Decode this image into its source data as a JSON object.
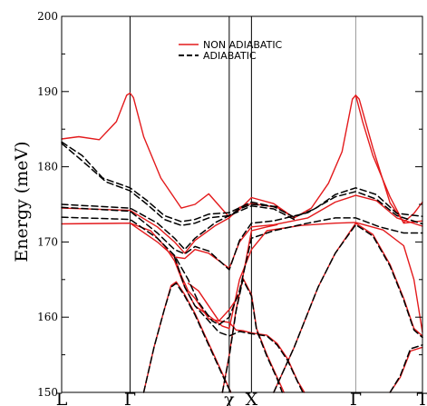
{
  "chart_data": {
    "type": "line",
    "title": "",
    "ylabel": "Energy (meV)",
    "xlabel": "",
    "ylim": [
      150,
      200
    ],
    "y_ticks": [
      150,
      160,
      170,
      180,
      190,
      200
    ],
    "x_range": [
      0,
      10.55
    ],
    "high_symmetry_points": [
      {
        "label": "L",
        "x": 0
      },
      {
        "label": "Γ",
        "x": 2.0
      },
      {
        "label": "χ",
        "x": 4.9
      },
      {
        "label": "X",
        "x": 5.55
      },
      {
        "label": "Γ",
        "x": 8.6
      },
      {
        "label": "T",
        "x": 10.55
      }
    ],
    "legend": {
      "position": "top-center",
      "entries": [
        {
          "label": "NON ADIABATIC",
          "color": "#e31a1c",
          "style": "solid"
        },
        {
          "label": "ADIABATIC",
          "color": "#000000",
          "style": "dashed"
        }
      ]
    },
    "series": [
      {
        "name": "NON ADIABATIC",
        "color": "#e31a1c",
        "style": "solid",
        "branches": [
          [
            [
              0,
              183.7
            ],
            [
              0.5,
              184
            ],
            [
              1.1,
              183.6
            ],
            [
              1.6,
              186
            ],
            [
              1.9,
              189.5
            ],
            [
              2.0,
              189.8
            ],
            [
              2.1,
              189.2
            ],
            [
              2.4,
              184
            ],
            [
              2.9,
              178.5
            ],
            [
              3.5,
              174.5
            ],
            [
              3.9,
              175
            ],
            [
              4.3,
              176.4
            ],
            [
              4.9,
              173.3
            ],
            [
              5.2,
              174.3
            ],
            [
              5.55,
              175.9
            ],
            [
              6.2,
              175.1
            ],
            [
              6.8,
              173.2
            ],
            [
              7.3,
              174.5
            ],
            [
              7.8,
              177.8
            ],
            [
              8.2,
              182
            ],
            [
              8.5,
              189
            ],
            [
              8.6,
              189.5
            ],
            [
              8.7,
              189
            ],
            [
              9.1,
              182.5
            ],
            [
              9.6,
              175.2
            ],
            [
              10.0,
              172.6
            ],
            [
              10.3,
              173.8
            ],
            [
              10.55,
              175.3
            ]
          ],
          [
            [
              8.6,
              189.5
            ],
            [
              8.8,
              186
            ],
            [
              9.1,
              181.5
            ],
            [
              9.6,
              176
            ],
            [
              10.0,
              172.5
            ],
            [
              10.55,
              172.8
            ]
          ],
          [
            [
              0,
              174.5
            ],
            [
              2.0,
              174.2
            ],
            [
              2.8,
              172
            ],
            [
              3.3,
              170
            ],
            [
              3.6,
              168.5
            ],
            [
              3.9,
              170.2
            ],
            [
              4.5,
              172.2
            ],
            [
              4.9,
              173.2
            ],
            [
              5.2,
              174.6
            ],
            [
              5.55,
              175.1
            ],
            [
              6.3,
              174.6
            ],
            [
              6.8,
              173.2
            ]
          ],
          [
            [
              0,
              172.4
            ],
            [
              2.0,
              172.5
            ],
            [
              2.8,
              170
            ],
            [
              3.3,
              168
            ],
            [
              3.6,
              167.8
            ],
            [
              3.9,
              169
            ],
            [
              4.3,
              168.5
            ],
            [
              4.9,
              166.5
            ],
            [
              5.2,
              170
            ],
            [
              5.55,
              172
            ],
            [
              6.2,
              172.3
            ],
            [
              7.2,
              173.2
            ],
            [
              8.0,
              175.3
            ],
            [
              8.6,
              176.2
            ],
            [
              9.2,
              175.5
            ],
            [
              9.8,
              173.2
            ],
            [
              10.55,
              172.1
            ]
          ],
          [
            [
              3.3,
              168
            ],
            [
              3.5,
              165.5
            ],
            [
              3.7,
              163.5
            ],
            [
              3.9,
              162.5
            ],
            [
              4.3,
              159.8
            ],
            [
              4.6,
              159.5
            ],
            [
              4.9,
              161
            ],
            [
              5.2,
              163
            ],
            [
              5.55,
              171.5
            ],
            [
              6.0,
              172
            ],
            [
              6.3,
              172.3
            ]
          ],
          [
            [
              2.0,
              172.5
            ],
            [
              2.6,
              171.5
            ],
            [
              3.0,
              169.5
            ],
            [
              3.3,
              167.5
            ],
            [
              3.6,
              164
            ],
            [
              3.9,
              161.5
            ],
            [
              4.3,
              160.2
            ],
            [
              4.7,
              158.8
            ],
            [
              4.9,
              158.5
            ],
            [
              5.2,
              165
            ],
            [
              5.55,
              169
            ],
            [
              6.0,
              171.5
            ],
            [
              7.0,
              172.2
            ],
            [
              8.0,
              172.5
            ],
            [
              8.6,
              172.6
            ],
            [
              9.4,
              171.6
            ],
            [
              10.0,
              169.5
            ],
            [
              10.3,
              165
            ],
            [
              10.55,
              158
            ]
          ],
          [
            [
              3.7,
              164.5
            ],
            [
              4.0,
              163.5
            ],
            [
              4.3,
              161.5
            ],
            [
              4.6,
              159.5
            ],
            [
              4.9,
              159.3
            ],
            [
              5.1,
              158.3
            ],
            [
              5.3,
              158.2
            ],
            [
              5.55,
              157.9
            ],
            [
              6.0,
              157.6
            ],
            [
              6.3,
              156.5
            ],
            [
              6.6,
              154.5
            ],
            [
              6.9,
              151.5
            ],
            [
              7.1,
              150
            ]
          ],
          [
            [
              2.4,
              150
            ],
            [
              2.7,
              156
            ],
            [
              3.0,
              161
            ],
            [
              3.2,
              164.2
            ],
            [
              3.35,
              164.7
            ],
            [
              3.6,
              163
            ],
            [
              3.9,
              160.5
            ],
            [
              4.2,
              157.5
            ],
            [
              4.5,
              154.5
            ],
            [
              4.8,
              151.5
            ],
            [
              4.95,
              150
            ]
          ],
          [
            [
              4.7,
              150
            ],
            [
              4.9,
              155
            ],
            [
              5.1,
              161
            ],
            [
              5.3,
              165.2
            ],
            [
              5.55,
              163
            ],
            [
              5.7,
              158.5
            ],
            [
              6.0,
              155
            ],
            [
              6.3,
              152
            ],
            [
              6.5,
              150
            ]
          ],
          [
            [
              6.2,
              150
            ],
            [
              6.8,
              156
            ],
            [
              7.5,
              164
            ],
            [
              8.0,
              168.5
            ],
            [
              8.6,
              172.5
            ],
            [
              9.1,
              171
            ],
            [
              9.6,
              167
            ],
            [
              10.0,
              162.5
            ],
            [
              10.3,
              158.5
            ],
            [
              10.55,
              157.5
            ]
          ],
          [
            [
              9.6,
              150
            ],
            [
              9.9,
              152
            ],
            [
              10.2,
              155.5
            ],
            [
              10.55,
              156
            ]
          ]
        ]
      },
      {
        "name": "ADIABATIC",
        "color": "#000000",
        "style": "dashed",
        "branches": [
          [
            [
              0,
              183.3
            ],
            [
              0.6,
              181.5
            ],
            [
              1.2,
              178.5
            ],
            [
              2.0,
              177.2
            ],
            [
              2.5,
              175.5
            ],
            [
              3.0,
              173.5
            ],
            [
              3.5,
              172.7
            ],
            [
              3.9,
              173
            ],
            [
              4.3,
              173.7
            ],
            [
              4.9,
              173.9
            ],
            [
              5.55,
              175.3
            ],
            [
              6.2,
              174.7
            ],
            [
              6.8,
              173.3
            ],
            [
              7.4,
              174.4
            ],
            [
              8.0,
              176.3
            ],
            [
              8.6,
              177.2
            ],
            [
              9.2,
              176.3
            ],
            [
              9.8,
              173.8
            ],
            [
              10.55,
              173.4
            ]
          ],
          [
            [
              0,
              183.1
            ],
            [
              0.6,
              180.8
            ],
            [
              1.3,
              178
            ],
            [
              2.0,
              176.8
            ],
            [
              2.5,
              175
            ],
            [
              3.0,
              173
            ],
            [
              3.5,
              172.2
            ],
            [
              3.9,
              172.5
            ],
            [
              4.3,
              173.2
            ],
            [
              4.9,
              173.5
            ],
            [
              5.55,
              174.8
            ],
            [
              6.2,
              174.4
            ],
            [
              6.8,
              173
            ]
          ],
          [
            [
              0,
              175
            ],
            [
              2.0,
              174.5
            ],
            [
              2.8,
              172.5
            ],
            [
              3.3,
              170.5
            ],
            [
              3.6,
              169
            ],
            [
              3.9,
              170.5
            ],
            [
              4.5,
              172.6
            ],
            [
              4.9,
              173.5
            ],
            [
              5.2,
              174.4
            ],
            [
              5.55,
              175
            ],
            [
              6.3,
              174.7
            ]
          ],
          [
            [
              0,
              174.6
            ],
            [
              2.0,
              174.1
            ],
            [
              2.8,
              171.2
            ],
            [
              3.3,
              169
            ],
            [
              3.6,
              168.4
            ],
            [
              3.9,
              169.4
            ],
            [
              4.3,
              168.8
            ],
            [
              4.9,
              166.3
            ],
            [
              5.2,
              170.2
            ],
            [
              5.55,
              172.5
            ],
            [
              6.2,
              172.8
            ],
            [
              7.2,
              173.9
            ],
            [
              8.0,
              176
            ],
            [
              8.6,
              176.7
            ],
            [
              9.2,
              175.7
            ],
            [
              9.8,
              173.5
            ],
            [
              10.55,
              172.4
            ]
          ],
          [
            [
              0,
              173.3
            ],
            [
              2.0,
              173
            ],
            [
              2.8,
              170.5
            ],
            [
              3.3,
              168.2
            ],
            [
              3.7,
              165
            ],
            [
              4.0,
              162
            ],
            [
              4.4,
              159.5
            ],
            [
              4.6,
              159
            ],
            [
              4.9,
              160
            ],
            [
              5.2,
              163.5
            ],
            [
              5.55,
              170.5
            ],
            [
              6.2,
              171.5
            ],
            [
              7.2,
              172.5
            ],
            [
              8.0,
              173.2
            ],
            [
              8.6,
              173.2
            ],
            [
              9.3,
              172
            ],
            [
              10.0,
              171.2
            ],
            [
              10.55,
              171.2
            ]
          ],
          [
            [
              3.3,
              168
            ],
            [
              3.6,
              164
            ],
            [
              3.9,
              161.5
            ],
            [
              4.3,
              159.5
            ],
            [
              4.6,
              158
            ],
            [
              4.9,
              157.5
            ],
            [
              5.2,
              158.1
            ],
            [
              5.55,
              157.8
            ],
            [
              6.0,
              157.5
            ],
            [
              6.3,
              156.3
            ],
            [
              6.6,
              154.3
            ],
            [
              6.9,
              151.4
            ],
            [
              7.05,
              150
            ]
          ],
          [
            [
              2.4,
              150
            ],
            [
              2.7,
              156
            ],
            [
              3.0,
              161
            ],
            [
              3.2,
              164
            ],
            [
              3.35,
              164.5
            ],
            [
              3.6,
              162.8
            ],
            [
              3.9,
              160.3
            ],
            [
              4.2,
              157.3
            ],
            [
              4.5,
              154.3
            ],
            [
              4.8,
              151.3
            ],
            [
              4.95,
              150
            ]
          ],
          [
            [
              4.7,
              150
            ],
            [
              4.9,
              154.8
            ],
            [
              5.1,
              160.8
            ],
            [
              5.3,
              165
            ],
            [
              5.55,
              162.8
            ],
            [
              5.7,
              158.3
            ],
            [
              6.0,
              154.8
            ],
            [
              6.3,
              151.8
            ],
            [
              6.45,
              150
            ]
          ],
          [
            [
              6.2,
              150
            ],
            [
              6.8,
              156
            ],
            [
              7.5,
              164
            ],
            [
              8.0,
              168.5
            ],
            [
              8.6,
              172.3
            ],
            [
              9.1,
              170.8
            ],
            [
              9.6,
              166.8
            ],
            [
              10.0,
              162.3
            ],
            [
              10.3,
              158.3
            ],
            [
              10.55,
              157.3
            ]
          ],
          [
            [
              9.6,
              150
            ],
            [
              9.9,
              152.2
            ],
            [
              10.2,
              155.8
            ],
            [
              10.55,
              156.3
            ]
          ]
        ]
      }
    ]
  }
}
